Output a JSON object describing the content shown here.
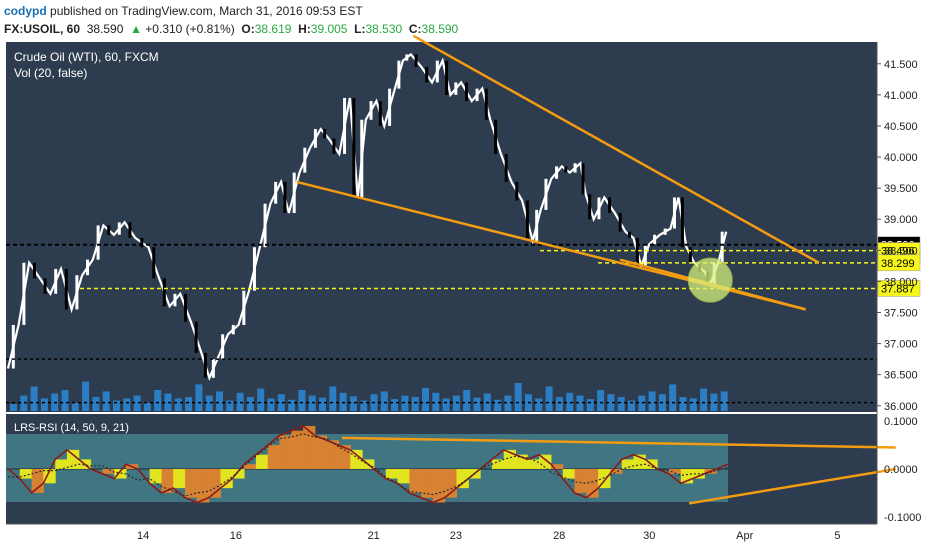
{
  "header": {
    "author": "codypd",
    "published_text": "published on TradingView.com, March 31, 2016 09:53 EST",
    "symbol": "FX:USOIL, 60",
    "last": "38.590",
    "change_arrow": "▲",
    "change": "+0.310 (+0.81%)",
    "open_label": "O:",
    "open": "38.619",
    "high_label": "H:",
    "high": "39.005",
    "low_label": "L:",
    "low": "38.530",
    "close_label": "C:",
    "close": "38.590"
  },
  "colors": {
    "bg": "#2e3c4f",
    "up": "#ffffff",
    "down": "#000000",
    "trendline": "#f39c12",
    "yellow_line": "#f7f71b",
    "rsi_fill_orange": "#e8842a",
    "rsi_fill_yellow": "#f2f214",
    "rsi_band": "#4fa6ad",
    "volume_bar": "#2a8ad8"
  },
  "chart_data": [
    {
      "type": "line",
      "title": "Crude Oil (WTI), 60, FXCM",
      "subtitle": "Vol (20, false)",
      "x_tick_labels": [
        "14",
        "16",
        "21",
        "23",
        "28",
        "30",
        "Apr",
        "5"
      ],
      "y_tick_labels": [
        "41.500",
        "41.000",
        "40.500",
        "40.000",
        "39.500",
        "39.000",
        "38.500",
        "38.000",
        "37.500",
        "37.000",
        "36.500",
        "36.000"
      ],
      "ylim": [
        35.9,
        41.85
      ],
      "price_tags": [
        {
          "value": "38.590",
          "price": 38.59,
          "style": "black"
        },
        {
          "value": "06:23",
          "price": 38.42,
          "style": "white"
        },
        {
          "value": "38.496",
          "price": 38.496,
          "style": "yellow"
        },
        {
          "value": "38.299",
          "price": 38.299,
          "style": "yellow"
        },
        {
          "value": "37.887",
          "price": 37.887,
          "style": "yellow"
        }
      ],
      "price_path": [
        {
          "x": 0.0,
          "y": 36.6
        },
        {
          "x": 0.4,
          "y": 37.3
        },
        {
          "x": 0.8,
          "y": 38.3
        },
        {
          "x": 1.2,
          "y": 38.05
        },
        {
          "x": 1.6,
          "y": 37.8
        },
        {
          "x": 2.0,
          "y": 38.2
        },
        {
          "x": 2.4,
          "y": 37.55
        },
        {
          "x": 2.8,
          "y": 38.1
        },
        {
          "x": 3.2,
          "y": 38.35
        },
        {
          "x": 3.6,
          "y": 38.9
        },
        {
          "x": 4.0,
          "y": 38.75
        },
        {
          "x": 4.4,
          "y": 38.95
        },
        {
          "x": 4.8,
          "y": 38.7
        },
        {
          "x": 5.3,
          "y": 38.55
        },
        {
          "x": 5.7,
          "y": 38.05
        },
        {
          "x": 6.1,
          "y": 37.6
        },
        {
          "x": 6.5,
          "y": 37.8
        },
        {
          "x": 6.9,
          "y": 37.35
        },
        {
          "x": 7.3,
          "y": 36.85
        },
        {
          "x": 7.6,
          "y": 36.45
        },
        {
          "x": 7.9,
          "y": 36.75
        },
        {
          "x": 8.3,
          "y": 37.15
        },
        {
          "x": 8.7,
          "y": 37.3
        },
        {
          "x": 9.1,
          "y": 37.85
        },
        {
          "x": 9.5,
          "y": 38.55
        },
        {
          "x": 9.9,
          "y": 39.25
        },
        {
          "x": 10.3,
          "y": 39.6
        },
        {
          "x": 10.6,
          "y": 39.1
        },
        {
          "x": 11.0,
          "y": 39.75
        },
        {
          "x": 11.4,
          "y": 40.15
        },
        {
          "x": 11.8,
          "y": 40.45
        },
        {
          "x": 12.1,
          "y": 40.3
        },
        {
          "x": 12.5,
          "y": 40.05
        },
        {
          "x": 12.9,
          "y": 40.95
        },
        {
          "x": 13.2,
          "y": 39.35
        },
        {
          "x": 13.5,
          "y": 40.6
        },
        {
          "x": 13.9,
          "y": 40.9
        },
        {
          "x": 14.2,
          "y": 40.5
        },
        {
          "x": 14.6,
          "y": 41.1
        },
        {
          "x": 14.9,
          "y": 41.55
        },
        {
          "x": 15.2,
          "y": 41.65
        },
        {
          "x": 15.6,
          "y": 41.45
        },
        {
          "x": 16.0,
          "y": 41.2
        },
        {
          "x": 16.4,
          "y": 41.55
        },
        {
          "x": 16.7,
          "y": 41.0
        },
        {
          "x": 17.1,
          "y": 41.2
        },
        {
          "x": 17.5,
          "y": 40.9
        },
        {
          "x": 17.9,
          "y": 41.1
        },
        {
          "x": 18.2,
          "y": 40.6
        },
        {
          "x": 18.6,
          "y": 40.05
        },
        {
          "x": 19.0,
          "y": 39.6
        },
        {
          "x": 19.4,
          "y": 39.3
        },
        {
          "x": 19.8,
          "y": 38.65
        },
        {
          "x": 20.1,
          "y": 39.15
        },
        {
          "x": 20.5,
          "y": 39.65
        },
        {
          "x": 20.9,
          "y": 39.85
        },
        {
          "x": 21.2,
          "y": 39.75
        },
        {
          "x": 21.6,
          "y": 39.9
        },
        {
          "x": 21.8,
          "y": 39.4
        },
        {
          "x": 22.1,
          "y": 39.0
        },
        {
          "x": 22.5,
          "y": 39.35
        },
        {
          "x": 22.9,
          "y": 39.1
        },
        {
          "x": 23.3,
          "y": 38.8
        },
        {
          "x": 23.6,
          "y": 38.7
        },
        {
          "x": 23.9,
          "y": 38.25
        },
        {
          "x": 24.2,
          "y": 38.6
        },
        {
          "x": 24.6,
          "y": 38.75
        },
        {
          "x": 25.0,
          "y": 38.85
        },
        {
          "x": 25.3,
          "y": 39.35
        },
        {
          "x": 25.6,
          "y": 38.55
        },
        {
          "x": 25.9,
          "y": 38.3
        },
        {
          "x": 26.3,
          "y": 38.15
        },
        {
          "x": 26.5,
          "y": 37.95
        },
        {
          "x": 26.8,
          "y": 38.3
        },
        {
          "x": 27.1,
          "y": 38.8
        }
      ],
      "volume": [
        0.1,
        0.22,
        0.35,
        0.18,
        0.25,
        0.3,
        0.12,
        0.42,
        0.2,
        0.28,
        0.15,
        0.18,
        0.22,
        0.12,
        0.3,
        0.25,
        0.18,
        0.2,
        0.38,
        0.22,
        0.28,
        0.15,
        0.26,
        0.2,
        0.32,
        0.18,
        0.24,
        0.16,
        0.3,
        0.22,
        0.19,
        0.35,
        0.26,
        0.21,
        0.15,
        0.24,
        0.28,
        0.17,
        0.22,
        0.2,
        0.33,
        0.26,
        0.18,
        0.22,
        0.3,
        0.19,
        0.25,
        0.16,
        0.22,
        0.4,
        0.24,
        0.18,
        0.35,
        0.2,
        0.26,
        0.22,
        0.17,
        0.3,
        0.24,
        0.2,
        0.15,
        0.22,
        0.28,
        0.24,
        0.38,
        0.2,
        0.18,
        0.32,
        0.25,
        0.28
      ]
    },
    {
      "type": "area",
      "title": "LRS-RSI (14, 50, 9, 21)",
      "y_tick_labels": [
        "0.1000",
        "0.0000",
        "-0.1000"
      ],
      "ylim": [
        -0.115,
        0.115
      ],
      "series": [
        {
          "values": [
            0.0,
            -0.02,
            -0.05,
            -0.03,
            0.02,
            0.04,
            0.02,
            0.0,
            -0.01,
            -0.02,
            0.01,
            0.0,
            -0.03,
            -0.05,
            -0.04,
            -0.06,
            -0.07,
            -0.06,
            -0.04,
            -0.02,
            0.01,
            0.03,
            0.05,
            0.07,
            0.08,
            0.09,
            0.07,
            0.06,
            0.05,
            0.04,
            0.02,
            0.0,
            -0.02,
            -0.03,
            -0.05,
            -0.06,
            -0.07,
            -0.06,
            -0.04,
            -0.02,
            0.0,
            0.02,
            0.04,
            0.03,
            0.02,
            0.03,
            0.01,
            -0.02,
            -0.05,
            -0.06,
            -0.04,
            -0.01,
            0.02,
            0.03,
            0.02,
            0.0,
            -0.01,
            -0.03,
            -0.02,
            -0.01,
            0.0,
            0.01
          ]
        }
      ],
      "annotations": [
        {
          "kind": "trendline",
          "from": [
            12.6,
            0.065
          ],
          "to": [
            33.5,
            0.045
          ]
        },
        {
          "kind": "trendline",
          "from": [
            25.7,
            -0.072
          ],
          "to": [
            33.5,
            0.0
          ]
        }
      ]
    }
  ]
}
